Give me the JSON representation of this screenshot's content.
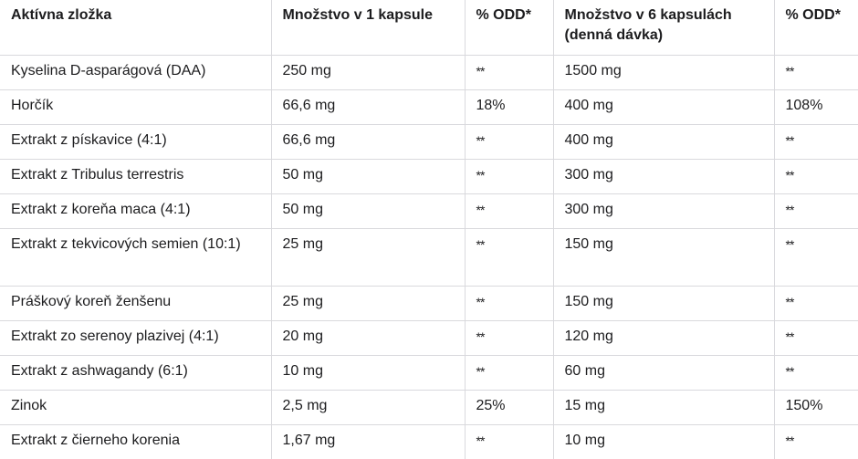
{
  "table": {
    "headers": [
      "Aktívna zložka",
      "Množstvo v 1 kapsule",
      "% ODD*",
      "Množstvo v 6 kapsulách (denná dávka)",
      "% ODD*"
    ],
    "rows": [
      [
        "Kyselina D-asparágová (DAA)",
        "250 mg",
        "**",
        "1500 mg",
        "**"
      ],
      [
        "Horčík",
        "66,6 mg",
        "18%",
        "400 mg",
        "108%"
      ],
      [
        "Extrakt z pískavice (4:1)",
        "66,6 mg",
        "**",
        "400 mg",
        "**"
      ],
      [
        "Extrakt z Tribulus terrestris",
        "50 mg",
        "**",
        "300 mg",
        "**"
      ],
      [
        "Extrakt z koreňa maca (4:1)",
        "50 mg",
        "**",
        "300 mg",
        "**"
      ],
      [
        "Extrakt z tekvicových semien (10:1)",
        "25 mg",
        "**",
        "150 mg",
        "**"
      ],
      [
        "Práškový koreň ženšenu",
        "25 mg",
        "**",
        "150 mg",
        "**"
      ],
      [
        "Extrakt zo serenoy plazivej (4:1)",
        "20 mg",
        "**",
        "120 mg",
        "**"
      ],
      [
        "Extrakt z ashwagandy (6:1)",
        "10 mg",
        "**",
        "60 mg",
        "**"
      ],
      [
        "Zinok",
        "2,5 mg",
        "25%",
        "15 mg",
        "150%"
      ],
      [
        "Extrakt z čierneho korenia",
        "1,67 mg",
        "**",
        "10 mg",
        "**"
      ]
    ]
  }
}
